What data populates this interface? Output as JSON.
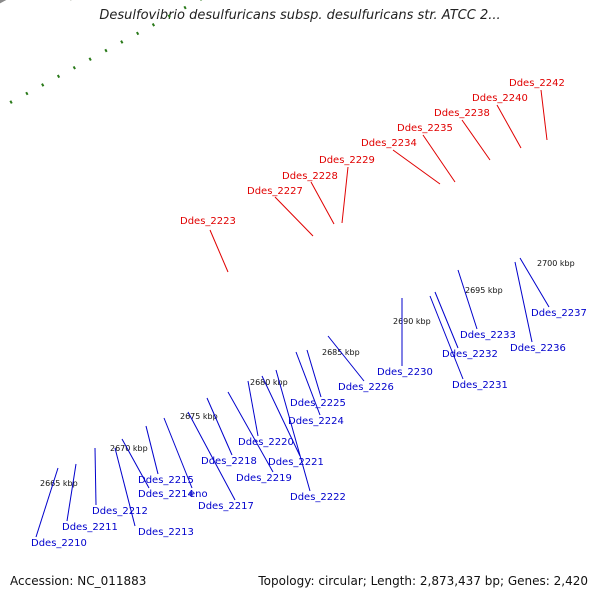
{
  "title": "Desulfovibrio desulfuricans subsp. desulfuricans str. ATCC 2...",
  "footer": {
    "accession": "Accession: NC_011883",
    "summary": "Topology: circular; Length: 2,873,437 bp; Genes: 2,420"
  },
  "colors": {
    "backbone": "#8a8a8a",
    "top_label": "#e00000",
    "bottom_label": "#0000cc",
    "ticks": "#2a7a1a"
  },
  "scale_labels": [
    "2665 kbp",
    "2670 kbp",
    "2675 kbp",
    "2680 kbp",
    "2685 kbp",
    "2690 kbp",
    "2695 kbp",
    "2700 kbp"
  ],
  "top_labels": [
    "Ddes_2223",
    "Ddes_2227",
    "Ddes_2228",
    "Ddes_2229",
    "Ddes_2234",
    "Ddes_2235",
    "Ddes_2238",
    "Ddes_2240",
    "Ddes_2242"
  ],
  "bottom_labels": [
    "Ddes_2210",
    "Ddes_2211",
    "Ddes_2212",
    "Ddes_2213",
    "Ddes_2214",
    "Ddes_2215",
    "eno",
    "Ddes_2217",
    "Ddes_2218",
    "Ddes_2219",
    "Ddes_2220",
    "Ddes_2221",
    "Ddes_2222",
    "Ddes_2224",
    "Ddes_2225",
    "Ddes_2226",
    "Ddes_2230",
    "Ddes_2231",
    "Ddes_2232",
    "Ddes_2233",
    "Ddes_2236",
    "Ddes_2237"
  ]
}
